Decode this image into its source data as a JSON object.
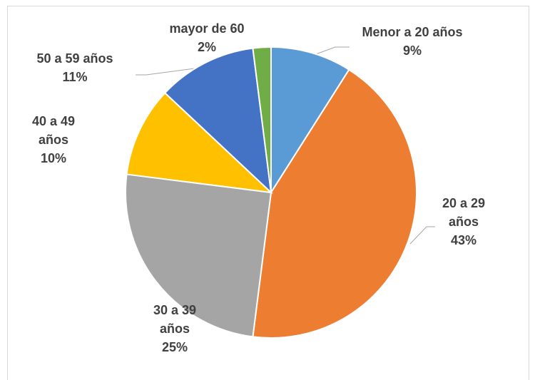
{
  "chart_data": {
    "type": "pie",
    "categories": [
      "Menor a 20 años",
      "20 a 29 años",
      "30 a 39 años",
      "40 a 49 años",
      "50 a 59 años",
      "mayor de 60"
    ],
    "values": [
      9,
      43,
      25,
      10,
      11,
      2
    ],
    "value_labels": [
      "9%",
      "43%",
      "25%",
      "10%",
      "11%",
      "2%"
    ],
    "colors": [
      "#5b9bd5",
      "#ed7d31",
      "#a5a5a5",
      "#ffc000",
      "#4472c4",
      "#70ad47"
    ]
  }
}
